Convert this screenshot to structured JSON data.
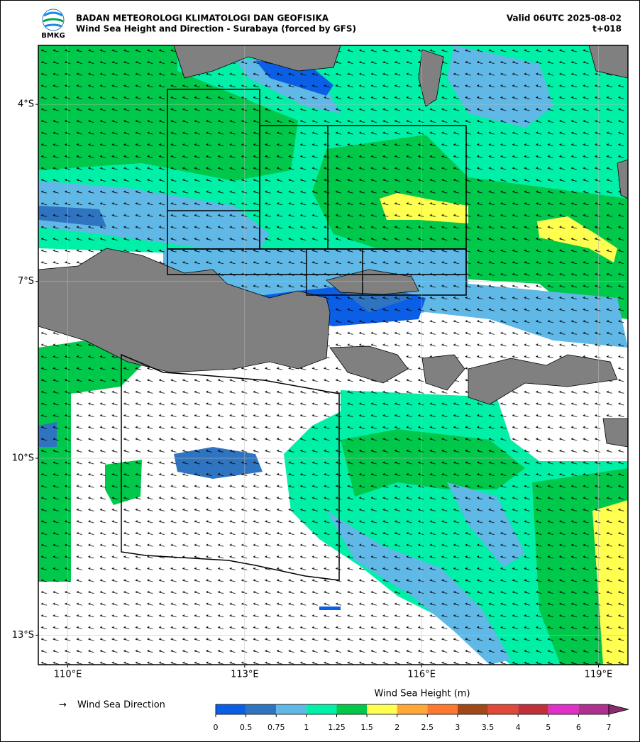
{
  "header": {
    "title": "BADAN METEOROLOGI KLIMATOLOGI DAN GEOFISIKA",
    "subtitle": "Wind Sea Height and Direction - Surabaya (forced by GFS)",
    "valid": "Valid 06UTC 2025-08-02",
    "lead": "t+018",
    "logo": "BMKG"
  },
  "map": {
    "xlim": [
      109.5,
      119.5
    ],
    "ylim": [
      -13.5,
      -3
    ],
    "xticks": [
      {
        "value": 110,
        "label": "110°E"
      },
      {
        "value": 113,
        "label": "113°E"
      },
      {
        "value": 116,
        "label": "116°E"
      },
      {
        "value": 119,
        "label": "119°E"
      }
    ],
    "yticks": [
      {
        "value": -4,
        "label": "4°S"
      },
      {
        "value": -7,
        "label": "7°S"
      },
      {
        "value": -10,
        "label": "10°S"
      },
      {
        "value": -13,
        "label": "13°S"
      }
    ],
    "grid": true
  },
  "legend": {
    "direction": "Wind Sea Direction"
  },
  "colorbar": {
    "title": "Wind Sea Height (m)",
    "ticks": [
      0,
      0.5,
      0.75,
      1,
      1.25,
      1.5,
      2,
      2.5,
      3,
      3.5,
      4,
      5,
      6,
      7
    ],
    "colors": [
      "#0a5fe6",
      "#2f74c0",
      "#5fb8e6",
      "#00f0a8",
      "#00c84a",
      "#ffff50",
      "#ffa838",
      "#ff7830",
      "#a04818",
      "#e04838",
      "#c0303a",
      "#e030c8",
      "#b03090",
      "#8b2a6c"
    ],
    "extend": "max"
  }
}
